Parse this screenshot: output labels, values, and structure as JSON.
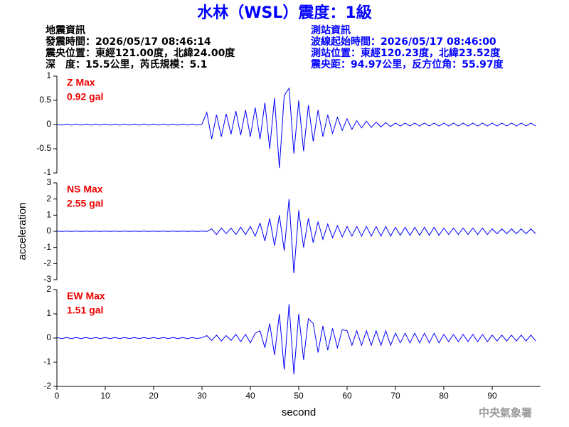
{
  "header": {
    "title": "水林（WSL）震度：1級",
    "left_info": [
      "地震資訊",
      "發震時間：2026/05/17 08:46:14",
      "震央位置：東經121.00度，北緯24.00度",
      "深　度：15.5公里，芮氏規模：5.1"
    ],
    "right_info": [
      "測站資訊",
      "波線起始時間：2026/05/17 08:46:00",
      "測站位置：東經120.23度，北緯23.52度",
      "震央距：94.97公里，反方位角：55.97度"
    ],
    "footer": "中央氣象署"
  },
  "chart_data": [
    {
      "type": "line",
      "annotation": [
        "Z Max",
        "0.92 gal"
      ],
      "color": "#0000ff",
      "xlim": [
        0,
        100
      ],
      "ylim": [
        -1,
        1
      ],
      "yticks": [
        -1,
        -0.5,
        0,
        0.5,
        1
      ],
      "x": [
        0,
        1,
        2,
        3,
        4,
        5,
        6,
        7,
        8,
        9,
        10,
        11,
        12,
        13,
        14,
        15,
        16,
        17,
        18,
        19,
        20,
        21,
        22,
        23,
        24,
        25,
        26,
        27,
        28,
        29,
        30,
        31,
        32,
        33,
        34,
        35,
        36,
        37,
        38,
        39,
        40,
        41,
        42,
        43,
        44,
        45,
        46,
        47,
        48,
        49,
        50,
        51,
        52,
        53,
        54,
        55,
        56,
        57,
        58,
        59,
        60,
        61,
        62,
        63,
        64,
        65,
        66,
        67,
        68,
        69,
        70,
        71,
        72,
        73,
        74,
        75,
        76,
        77,
        78,
        79,
        80,
        81,
        82,
        83,
        84,
        85,
        86,
        87,
        88,
        89,
        90,
        91,
        92,
        93,
        94,
        95,
        96,
        97,
        98,
        99
      ],
      "values": [
        0.01,
        -0.01,
        0.01,
        -0.01,
        0.01,
        -0.01,
        0.01,
        -0.01,
        0.01,
        -0.01,
        0.01,
        -0.01,
        0.01,
        -0.01,
        0.01,
        -0.01,
        0.01,
        -0.01,
        0.01,
        -0.01,
        0.01,
        -0.01,
        0.01,
        -0.01,
        0.01,
        -0.01,
        0.01,
        -0.01,
        0.01,
        -0.01,
        0.01,
        0.25,
        -0.3,
        0.2,
        -0.25,
        0.22,
        -0.2,
        0.28,
        -0.22,
        0.3,
        -0.25,
        0.35,
        -0.3,
        0.45,
        -0.5,
        0.55,
        -0.9,
        0.6,
        0.75,
        -0.6,
        0.5,
        -0.55,
        0.4,
        -0.35,
        0.3,
        -0.25,
        0.2,
        -0.18,
        0.15,
        -0.12,
        0.12,
        -0.1,
        0.08,
        -0.07,
        0.07,
        -0.06,
        0.05,
        -0.05,
        0.04,
        -0.04,
        0.03,
        -0.03,
        0.03,
        -0.03,
        0.03,
        -0.03,
        0.03,
        -0.03,
        0.03,
        -0.03,
        0.03,
        -0.03,
        0.03,
        -0.03,
        0.03,
        -0.03,
        0.03,
        -0.03,
        0.03,
        -0.03,
        0.03,
        -0.03,
        0.03,
        -0.03,
        0.03,
        -0.03,
        0.03,
        -0.03,
        0.03,
        -0.03
      ]
    },
    {
      "type": "line",
      "annotation": [
        "NS Max",
        "2.55 gal"
      ],
      "color": "#0000ff",
      "ylabel": "acceleration",
      "xlim": [
        0,
        100
      ],
      "ylim": [
        -3,
        3
      ],
      "yticks": [
        -3,
        -2,
        -1,
        0,
        1,
        2,
        3
      ],
      "x": [
        0,
        1,
        2,
        3,
        4,
        5,
        6,
        7,
        8,
        9,
        10,
        11,
        12,
        13,
        14,
        15,
        16,
        17,
        18,
        19,
        20,
        21,
        22,
        23,
        24,
        25,
        26,
        27,
        28,
        29,
        30,
        31,
        32,
        33,
        34,
        35,
        36,
        37,
        38,
        39,
        40,
        41,
        42,
        43,
        44,
        45,
        46,
        47,
        48,
        49,
        50,
        51,
        52,
        53,
        54,
        55,
        56,
        57,
        58,
        59,
        60,
        61,
        62,
        63,
        64,
        65,
        66,
        67,
        68,
        69,
        70,
        71,
        72,
        73,
        74,
        75,
        76,
        77,
        78,
        79,
        80,
        81,
        82,
        83,
        84,
        85,
        86,
        87,
        88,
        89,
        90,
        91,
        92,
        93,
        94,
        95,
        96,
        97,
        98,
        99
      ],
      "values": [
        0.01,
        -0.01,
        0.01,
        -0.01,
        0.01,
        -0.01,
        0.01,
        -0.01,
        0.01,
        -0.01,
        0.01,
        -0.01,
        0.01,
        -0.01,
        0.01,
        -0.01,
        0.01,
        -0.01,
        0.01,
        -0.01,
        0.01,
        -0.01,
        0.01,
        -0.01,
        0.01,
        -0.01,
        0.01,
        -0.01,
        0.01,
        -0.01,
        0.01,
        -0.01,
        0.15,
        -0.2,
        0.2,
        -0.15,
        0.2,
        -0.2,
        0.25,
        -0.2,
        0.3,
        -0.3,
        0.5,
        -0.6,
        0.8,
        -0.9,
        1.0,
        -1.2,
        2.0,
        -2.6,
        1.3,
        -1.0,
        0.8,
        -0.7,
        0.6,
        -0.5,
        0.45,
        -0.4,
        0.35,
        -0.35,
        0.3,
        -0.3,
        0.3,
        -0.3,
        0.3,
        -0.3,
        0.3,
        -0.3,
        0.3,
        -0.3,
        0.25,
        -0.25,
        0.25,
        -0.25,
        0.25,
        -0.25,
        0.25,
        -0.25,
        0.25,
        -0.25,
        0.2,
        -0.2,
        0.2,
        -0.2,
        0.2,
        -0.2,
        0.2,
        -0.2,
        0.2,
        -0.2,
        0.15,
        -0.15,
        0.15,
        -0.15,
        0.15,
        -0.15,
        0.15,
        -0.15,
        0.15,
        -0.15
      ]
    },
    {
      "type": "line",
      "annotation": [
        "EW Max",
        "1.51 gal"
      ],
      "color": "#0000ff",
      "xlabel": "second",
      "xlim": [
        0,
        100
      ],
      "xticks": [
        0,
        10,
        20,
        30,
        40,
        50,
        60,
        70,
        80,
        90
      ],
      "ylim": [
        -2,
        2
      ],
      "yticks": [
        -2,
        -1,
        0,
        1,
        2
      ],
      "x": [
        0,
        1,
        2,
        3,
        4,
        5,
        6,
        7,
        8,
        9,
        10,
        11,
        12,
        13,
        14,
        15,
        16,
        17,
        18,
        19,
        20,
        21,
        22,
        23,
        24,
        25,
        26,
        27,
        28,
        29,
        30,
        31,
        32,
        33,
        34,
        35,
        36,
        37,
        38,
        39,
        40,
        41,
        42,
        43,
        44,
        45,
        46,
        47,
        48,
        49,
        50,
        51,
        52,
        53,
        54,
        55,
        56,
        57,
        58,
        59,
        60,
        61,
        62,
        63,
        64,
        65,
        66,
        67,
        68,
        69,
        70,
        71,
        72,
        73,
        74,
        75,
        76,
        77,
        78,
        79,
        80,
        81,
        82,
        83,
        84,
        85,
        86,
        87,
        88,
        89,
        90,
        91,
        92,
        93,
        94,
        95,
        96,
        97,
        98,
        99
      ],
      "values": [
        0.02,
        -0.02,
        0.02,
        -0.02,
        0.02,
        -0.02,
        0.02,
        -0.02,
        0.02,
        -0.02,
        0.02,
        -0.02,
        0.02,
        -0.02,
        0.02,
        -0.02,
        0.02,
        -0.02,
        0.02,
        -0.02,
        0.02,
        -0.02,
        0.02,
        -0.02,
        0.02,
        -0.02,
        0.02,
        -0.02,
        0.02,
        -0.02,
        0.02,
        0.1,
        -0.1,
        0.12,
        -0.12,
        0.1,
        -0.1,
        0.15,
        -0.15,
        0.15,
        -0.2,
        0.2,
        0.3,
        -0.4,
        0.6,
        -0.7,
        1.0,
        -1.3,
        1.4,
        -1.5,
        1.0,
        -0.9,
        0.8,
        0.6,
        -0.6,
        0.5,
        -0.5,
        0.4,
        -0.4,
        0.35,
        0.3,
        -0.3,
        0.3,
        -0.3,
        0.3,
        -0.3,
        0.3,
        -0.3,
        0.3,
        -0.3,
        0.2,
        -0.2,
        0.2,
        -0.2,
        0.2,
        -0.2,
        0.2,
        -0.2,
        0.2,
        -0.2,
        0.15,
        -0.15,
        0.15,
        -0.15,
        0.15,
        -0.15,
        0.15,
        -0.15,
        0.15,
        -0.15,
        0.12,
        -0.12,
        0.12,
        -0.12,
        0.12,
        -0.12,
        0.12,
        -0.12,
        0.12,
        -0.12
      ]
    }
  ]
}
